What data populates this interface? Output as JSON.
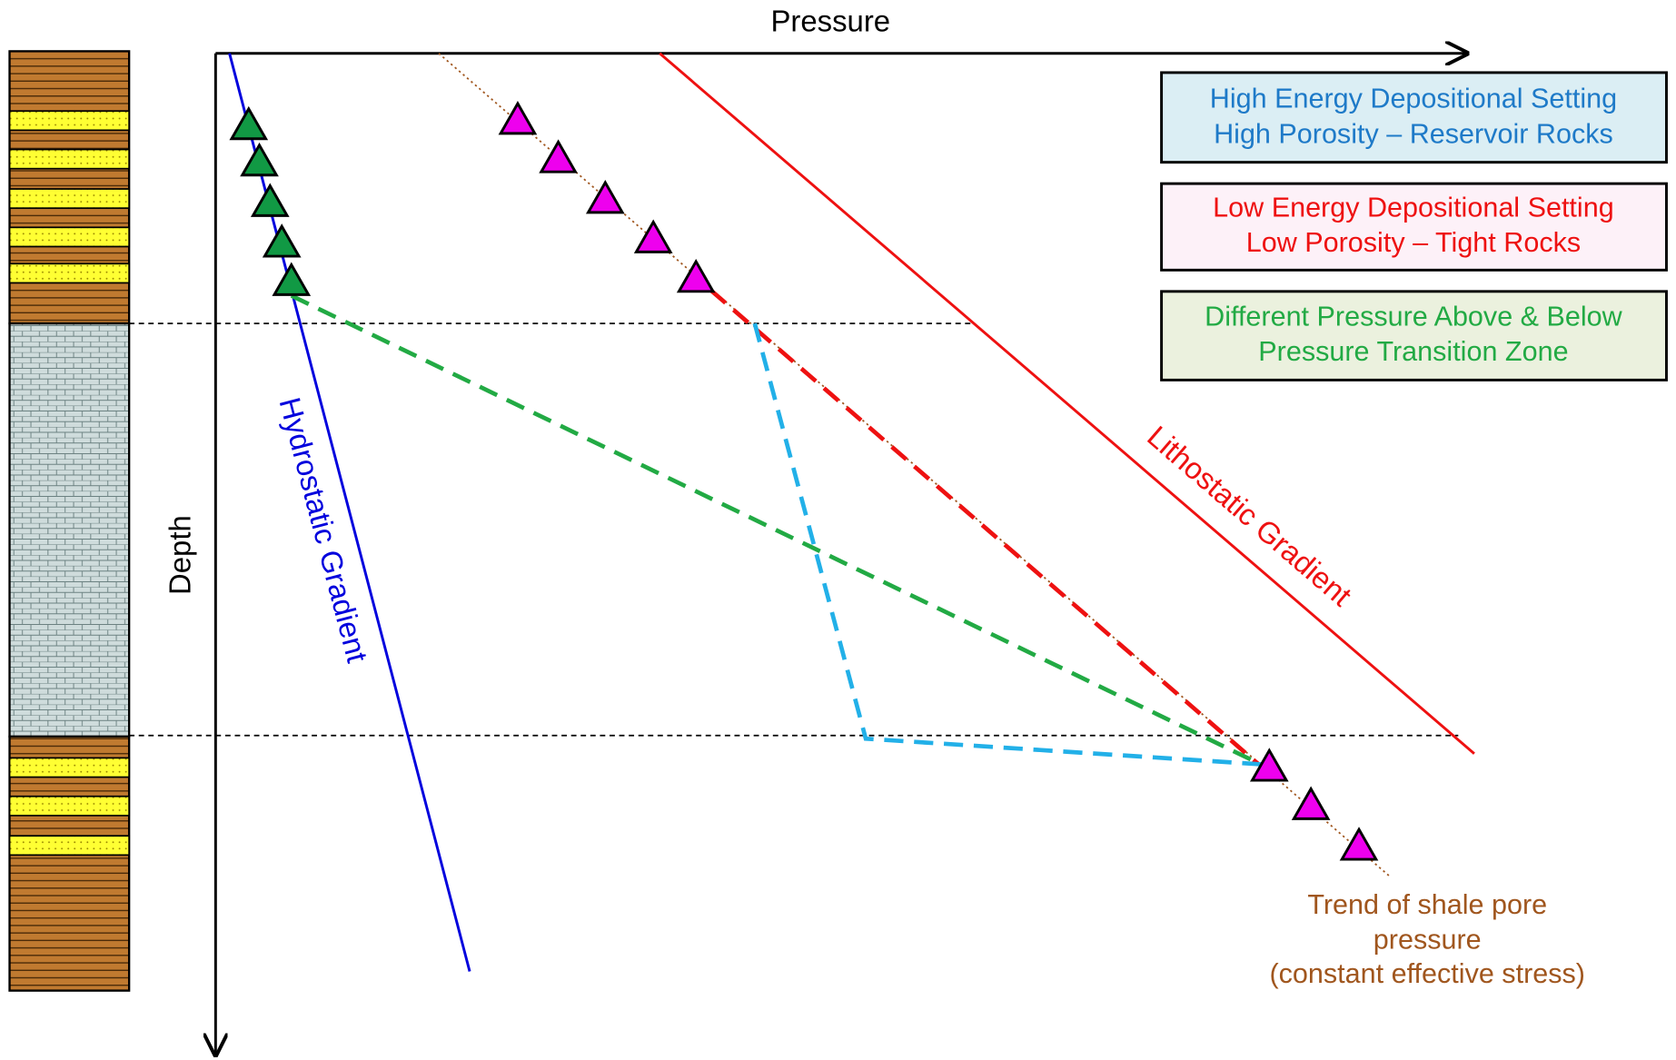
{
  "axes": {
    "x_label": "Pressure",
    "y_label": "Depth"
  },
  "lines": {
    "hydrostatic": "Hydrostatic Gradient",
    "lithostatic": "Lithostatic Gradient"
  },
  "legend": [
    {
      "lines": [
        "High Energy Depositional Setting",
        "High Porosity – Reservoir Rocks"
      ]
    },
    {
      "lines": [
        "Low Energy Depositional Setting",
        "Low Porosity – Tight Rocks"
      ]
    },
    {
      "lines": [
        "Different Pressure Above & Below",
        "Pressure Transition Zone"
      ]
    }
  ],
  "trend_label": [
    "Trend of shale pore",
    "pressure",
    "(constant effective stress)"
  ]
}
